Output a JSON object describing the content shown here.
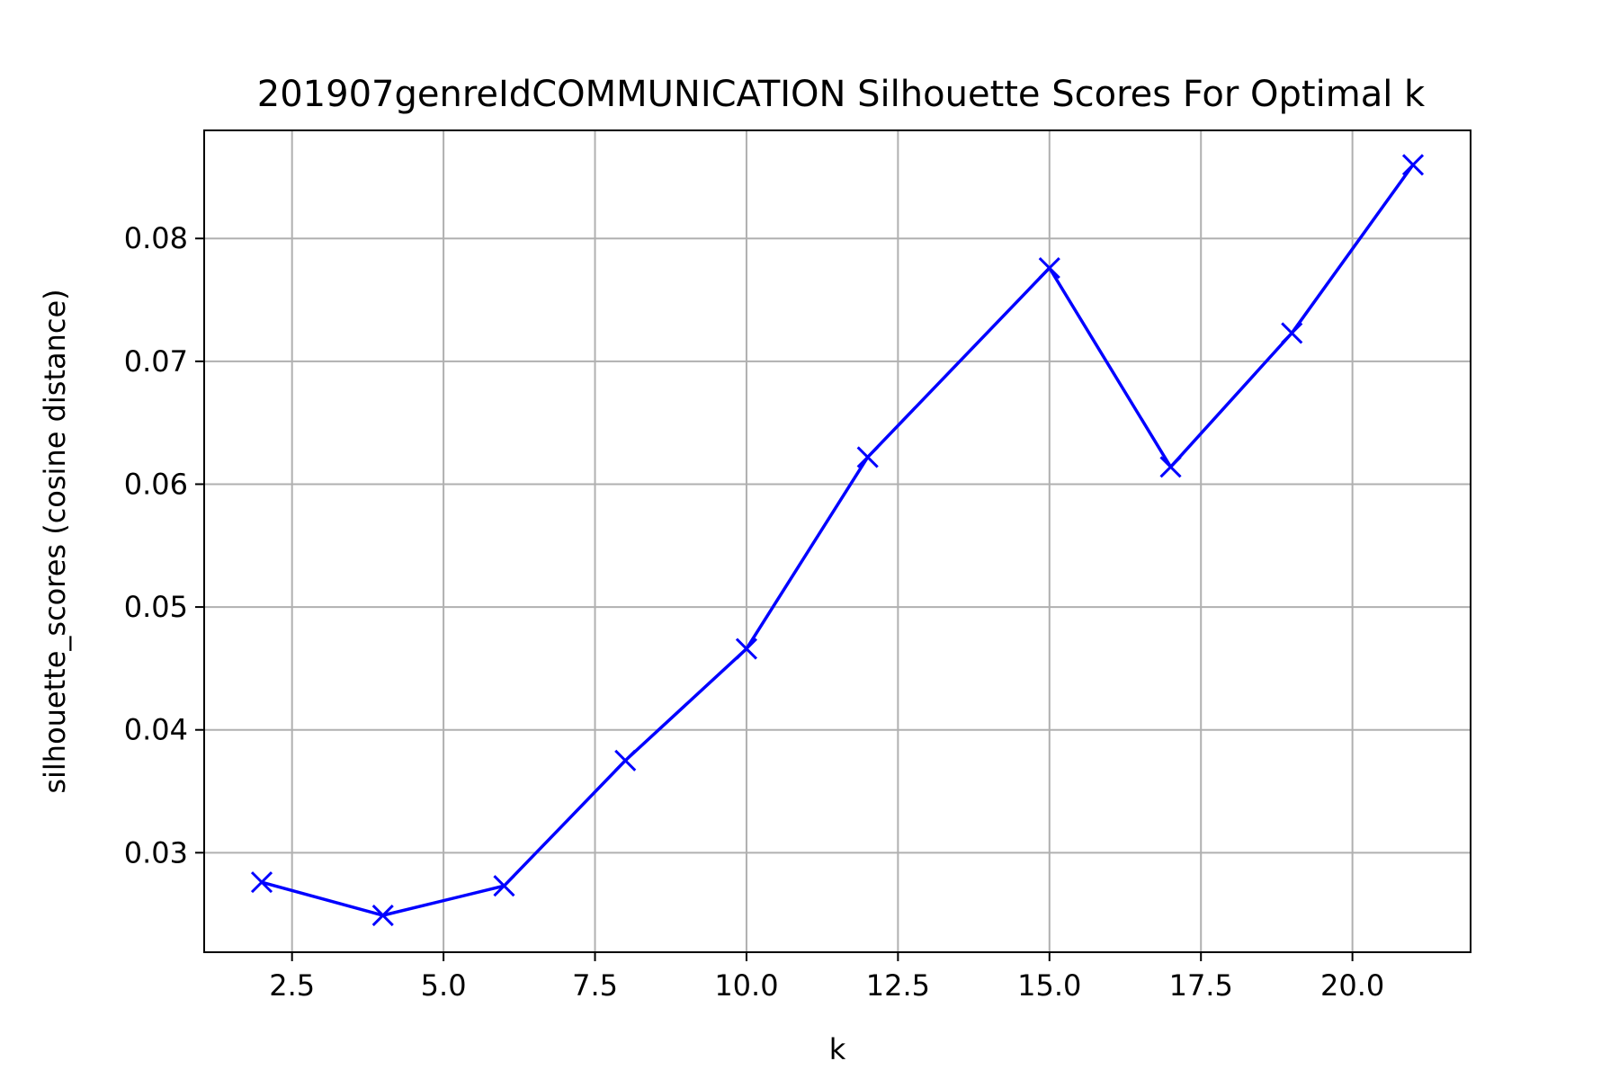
{
  "chart_data": {
    "type": "line",
    "title": "201907genreIdCOMMUNICATION Silhouette Scores For Optimal k",
    "xlabel": "k",
    "ylabel": "silhouette_scores (cosine distance)",
    "xlim": [
      1.05,
      21.95
    ],
    "ylim": [
      0.0219,
      0.0888
    ],
    "xticks": [
      2.5,
      5.0,
      7.5,
      10.0,
      12.5,
      15.0,
      17.5,
      20.0
    ],
    "xtick_labels": [
      "2.5",
      "5.0",
      "7.5",
      "10.0",
      "12.5",
      "15.0",
      "17.5",
      "20.0"
    ],
    "yticks": [
      0.03,
      0.04,
      0.05,
      0.06,
      0.07,
      0.08
    ],
    "ytick_labels": [
      "0.03",
      "0.04",
      "0.05",
      "0.06",
      "0.07",
      "0.08"
    ],
    "grid": true,
    "marker": "x",
    "color": "#0000ff",
    "series": [
      {
        "x": [
          2,
          4,
          6,
          8,
          10,
          12,
          15,
          17,
          19,
          21
        ],
        "values": [
          0.0276,
          0.0249,
          0.0273,
          0.0375,
          0.0466,
          0.0622,
          0.0776,
          0.0614,
          0.0723,
          0.086
        ]
      }
    ]
  }
}
